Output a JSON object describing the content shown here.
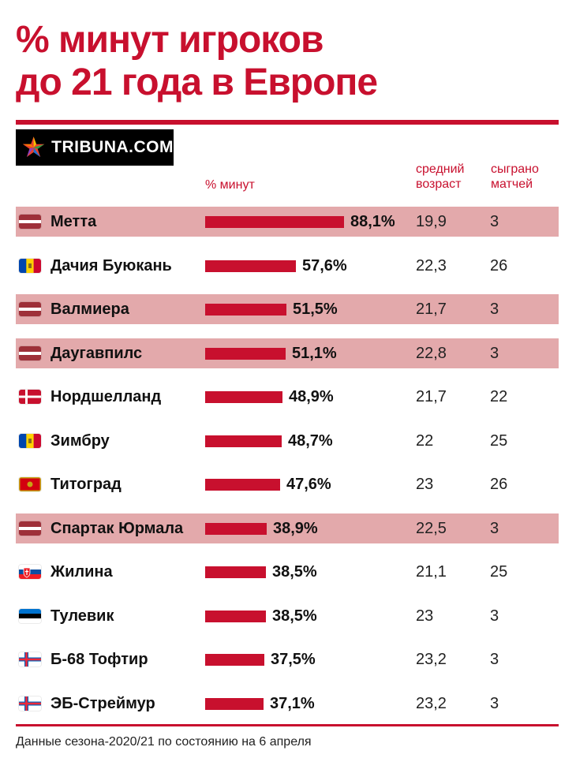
{
  "header": {
    "title_line1": "% минут игроков",
    "title_line2": "до 21 года в Европе",
    "logo_text": "TRIBUNA.COM"
  },
  "columns": {
    "pct": "% минут",
    "age_line1": "средний",
    "age_line2": "возраст",
    "games_line1": "сыграно",
    "games_line2": "матчей"
  },
  "colors": {
    "accent": "#c8102e",
    "highlight_row": "#e3a9ab"
  },
  "chart_data": {
    "type": "bar",
    "orientation": "horizontal",
    "categories": [
      "Метта",
      "Дачия Буюкань",
      "Валмиера",
      "Даугавпилс",
      "Нордшелланд",
      "Зимбру",
      "Титоград",
      "Спартак Юрмала",
      "Жилина",
      "Тулевик",
      "Б-68 Тофтир",
      "ЭБ-Стреймур"
    ],
    "values": [
      88.1,
      57.6,
      51.5,
      51.1,
      48.9,
      48.7,
      47.6,
      38.9,
      38.5,
      38.5,
      37.5,
      37.1
    ],
    "value_labels": [
      "88,1%",
      "57,6%",
      "51,5%",
      "51,1%",
      "48,9%",
      "48,7%",
      "47,6%",
      "38,9%",
      "38,5%",
      "38,5%",
      "37,5%",
      "37,1%"
    ],
    "xlim": [
      0,
      100
    ]
  },
  "rows": [
    {
      "flag": "latvia-flag",
      "team": "Метта",
      "pct": "88,1%",
      "value": 88.1,
      "age": "19,9",
      "games": "3",
      "highlight": true
    },
    {
      "flag": "moldova-flag",
      "team": "Дачия Буюкань",
      "pct": "57,6%",
      "value": 57.6,
      "age": "22,3",
      "games": "26",
      "highlight": false
    },
    {
      "flag": "latvia-flag",
      "team": "Валмиера",
      "pct": "51,5%",
      "value": 51.5,
      "age": "21,7",
      "games": "3",
      "highlight": true
    },
    {
      "flag": "latvia-flag",
      "team": "Даугавпилс",
      "pct": "51,1%",
      "value": 51.1,
      "age": "22,8",
      "games": "3",
      "highlight": true
    },
    {
      "flag": "denmark-flag",
      "team": "Нордшелланд",
      "pct": "48,9%",
      "value": 48.9,
      "age": "21,7",
      "games": "22",
      "highlight": false
    },
    {
      "flag": "moldova-flag",
      "team": "Зимбру",
      "pct": "48,7%",
      "value": 48.7,
      "age": "22",
      "games": "25",
      "highlight": false
    },
    {
      "flag": "montenegro-flag",
      "team": "Титоград",
      "pct": "47,6%",
      "value": 47.6,
      "age": "23",
      "games": "26",
      "highlight": false
    },
    {
      "flag": "latvia-flag",
      "team": "Спартак Юрмала",
      "pct": "38,9%",
      "value": 38.9,
      "age": "22,5",
      "games": "3",
      "highlight": true
    },
    {
      "flag": "slovakia-flag",
      "team": "Жилина",
      "pct": "38,5%",
      "value": 38.5,
      "age": "21,1",
      "games": "25",
      "highlight": false
    },
    {
      "flag": "estonia-flag",
      "team": "Тулевик",
      "pct": "38,5%",
      "value": 38.5,
      "age": "23",
      "games": "3",
      "highlight": false
    },
    {
      "flag": "faroe-islands-flag",
      "team": "Б-68 Тофтир",
      "pct": "37,5%",
      "value": 37.5,
      "age": "23,2",
      "games": "3",
      "highlight": false
    },
    {
      "flag": "faroe-islands-flag",
      "team": "ЭБ-Стреймур",
      "pct": "37,1%",
      "value": 37.1,
      "age": "23,2",
      "games": "3",
      "highlight": false
    }
  ],
  "footnote": "Данные сезона-2020/21 по состоянию на 6 апреля"
}
